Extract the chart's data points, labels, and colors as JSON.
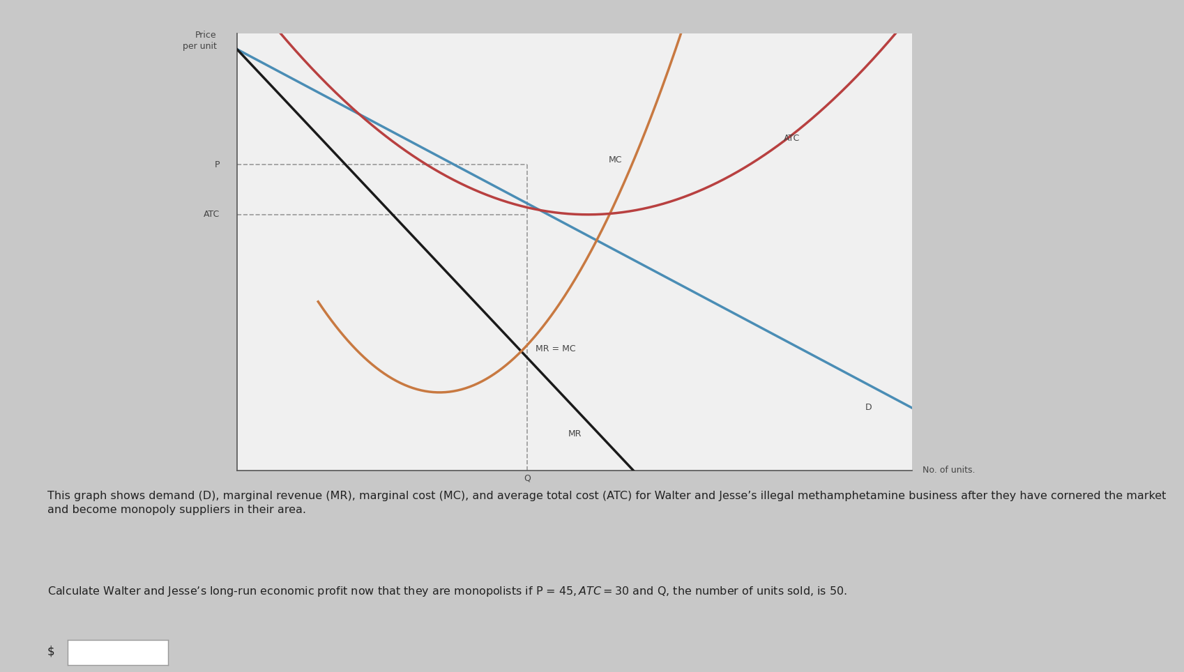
{
  "background_color": "#c8c8c8",
  "plot_bg_color": "#f0f0f0",
  "ylabel": "Price\nper unit",
  "xlabel": "No. of units.",
  "x_label_q": "Q",
  "y_label_p": "P",
  "y_label_atc": "ATC",
  "curve_labels": {
    "D": "D",
    "MR": "MR",
    "MC": "MC",
    "ATC": "ATC",
    "MR_MC": "MR = MC"
  },
  "colors": {
    "D": "#4a8db5",
    "MR": "#1a1a1a",
    "MC": "#c87941",
    "ATC": "#b84040",
    "dashed": "#999999"
  },
  "x_range": [
    0,
    10
  ],
  "y_range": [
    -2,
    12
  ],
  "p_level": 7.8,
  "atc_level": 6.2,
  "q_level": 4.3,
  "text_color": "#444444",
  "paragraph1": "This graph shows demand (D), marginal revenue (MR), marginal cost (MC), and average total cost (ATC) for Walter and Jesse’s illegal methamphetamine business after they have cornered the market and become monopoly suppliers in their area.",
  "paragraph2": "Calculate Walter and Jesse’s long-run economic profit now that they are monopolists if P = $45, ATC= $30 and Q, the number of units sold, is 50.",
  "dollar_label": "$"
}
